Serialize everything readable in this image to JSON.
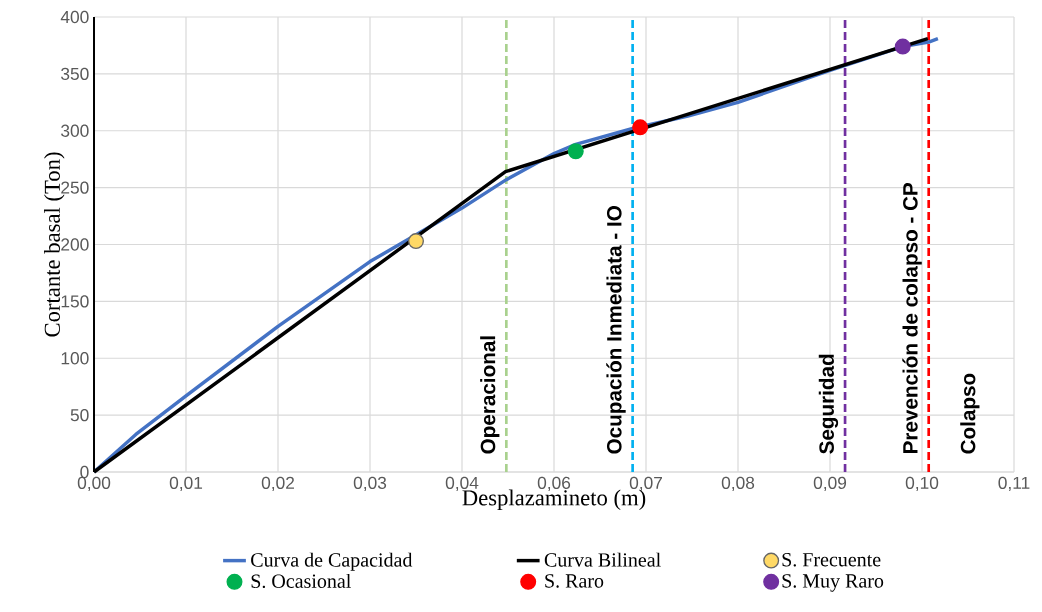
{
  "chart_data": {
    "type": "line",
    "xlabel": "Desplazamineto (m)",
    "ylabel": "Cortante basal (Ton)",
    "xlim": [
      0,
      0.11
    ],
    "ylim": [
      0,
      400
    ],
    "xticks": [
      {
        "value": 0,
        "label": "0,00"
      },
      {
        "value": 0.011,
        "label": "0,01"
      },
      {
        "value": 0.022,
        "label": "0,02"
      },
      {
        "value": 0.033,
        "label": "0,03"
      },
      {
        "value": 0.044,
        "label": "0,04"
      },
      {
        "value": 0.055,
        "label": "0,06"
      },
      {
        "value": 0.066,
        "label": "0,07"
      },
      {
        "value": 0.077,
        "label": "0,08"
      },
      {
        "value": 0.088,
        "label": "0,09"
      },
      {
        "value": 0.099,
        "label": "0,10"
      },
      {
        "value": 0.11,
        "label": "0,11"
      }
    ],
    "yticks": [
      0,
      50,
      100,
      150,
      200,
      250,
      300,
      350,
      400
    ],
    "grid": true,
    "legend": "bottom",
    "series": [
      {
        "name": "Curva de Capacidad",
        "type": "line",
        "marker": "none",
        "color": "#4472c4",
        "x": [
          0,
          0.005,
          0.011,
          0.022,
          0.033,
          0.044,
          0.0493,
          0.055,
          0.0576,
          0.0644,
          0.071,
          0.077,
          0.088,
          0.0967,
          0.0998,
          0.1009
        ],
        "values": [
          0,
          33,
          67,
          128,
          185,
          232,
          257,
          280,
          288,
          302,
          313,
          325,
          353,
          374,
          378,
          381
        ]
      },
      {
        "name": "Curva Bilineal",
        "type": "line",
        "marker": "none",
        "color": "#000000",
        "x": [
          0,
          0.0492,
          0.0997
        ],
        "values": [
          0,
          264,
          381
        ]
      },
      {
        "name": "S. Frecuente",
        "type": "scatter",
        "marker": "circle",
        "color": "#ffd966",
        "x": [
          0.0385
        ],
        "values": [
          203
        ]
      },
      {
        "name": "S. Ocasional",
        "type": "scatter",
        "marker": "circle",
        "color": "#00b050",
        "x": [
          0.0576
        ],
        "values": [
          282
        ]
      },
      {
        "name": "S. Raro",
        "type": "scatter",
        "marker": "circle",
        "color": "#ff0000",
        "x": [
          0.0653
        ],
        "values": [
          303
        ]
      },
      {
        "name": "S. Muy Raro",
        "type": "scatter",
        "marker": "circle",
        "color": "#7030a0",
        "x": [
          0.0967
        ],
        "values": [
          374
        ]
      }
    ],
    "ref_lines": [
      {
        "axis": "x",
        "value": 0.0493,
        "label": "Operacional",
        "color": "#a9d18e",
        "line_style": "dashed"
      },
      {
        "axis": "x",
        "value": 0.0644,
        "label": "Ocupación Inmediata - IO",
        "color": "#00b0f0",
        "line_style": "dashed"
      },
      {
        "axis": "x",
        "value": 0.0898,
        "label": "Seguridad",
        "color": "#7030a0",
        "line_style": "dashed"
      },
      {
        "axis": "x",
        "value": 0.0998,
        "label": "Prevención de colapso - CP",
        "color": "#ff0000",
        "line_style": "dashed"
      }
    ],
    "annotations": [
      "Colapso"
    ]
  }
}
